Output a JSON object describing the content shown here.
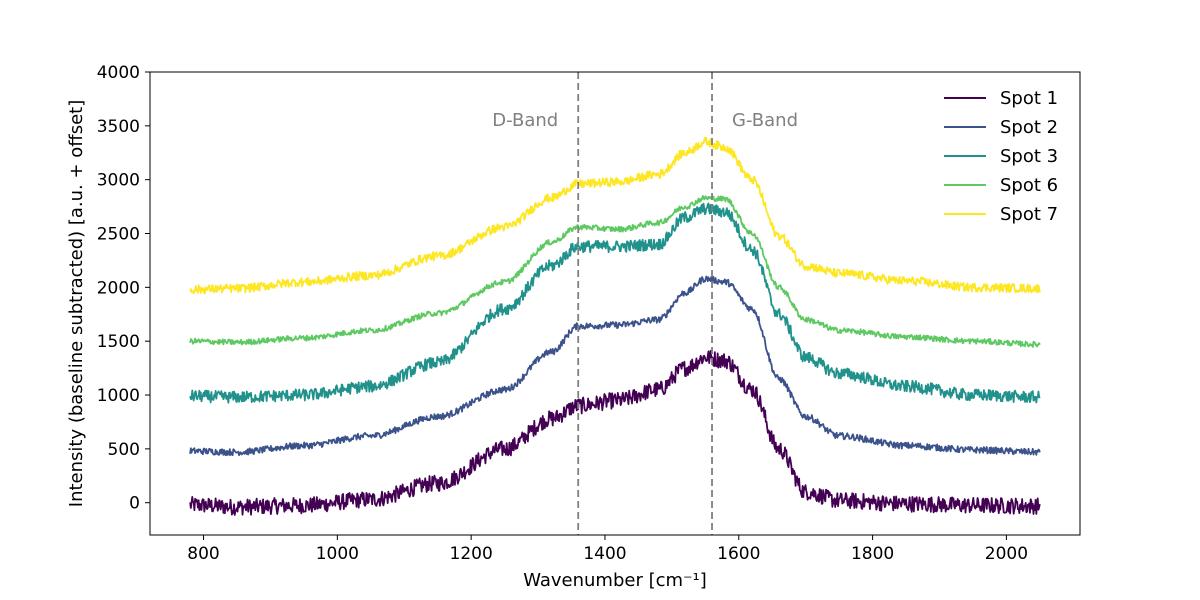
{
  "chart_data": {
    "type": "line",
    "title": "",
    "xlabel": "Wavenumber [cm⁻¹]",
    "ylabel": "Intensity (baseline subtracted) [a.u. + offset]",
    "xlim": [
      720,
      2110
    ],
    "ylim": [
      -300,
      4000
    ],
    "x_ticks": [
      800,
      1000,
      1200,
      1400,
      1600,
      1800,
      2000
    ],
    "y_ticks": [
      0,
      500,
      1000,
      1500,
      2000,
      2500,
      3000,
      3500,
      4000
    ],
    "grid": false,
    "legend_position": "top-right",
    "annotations": [
      {
        "label": "D-Band",
        "x": 1360,
        "color": "#808080",
        "style": "dashed"
      },
      {
        "label": "G-Band",
        "x": 1560,
        "color": "#808080",
        "style": "dashed"
      }
    ],
    "x": [
      780,
      850,
      950,
      1050,
      1150,
      1250,
      1320,
      1360,
      1420,
      1480,
      1520,
      1550,
      1580,
      1620,
      1660,
      1700,
      1750,
      1850,
      1950,
      2050
    ],
    "series": [
      {
        "name": "Spot 1",
        "color": "#440154",
        "offset": 0,
        "noise": 75,
        "values": [
          -20,
          -40,
          -25,
          30,
          180,
          500,
          780,
          900,
          950,
          1050,
          1250,
          1350,
          1320,
          1050,
          500,
          100,
          20,
          -10,
          -25,
          -30
        ]
      },
      {
        "name": "Spot 2",
        "color": "#3b528b",
        "offset": 500,
        "noise": 30,
        "values": [
          480,
          470,
          530,
          620,
          800,
          1050,
          1400,
          1640,
          1650,
          1700,
          1950,
          2080,
          2050,
          1800,
          1150,
          800,
          620,
          530,
          490,
          470
        ]
      },
      {
        "name": "Spot 3",
        "color": "#21918c",
        "offset": 1000,
        "noise": 55,
        "values": [
          990,
          980,
          1000,
          1080,
          1300,
          1800,
          2200,
          2380,
          2380,
          2400,
          2650,
          2730,
          2700,
          2350,
          1750,
          1350,
          1200,
          1080,
          1000,
          980
        ]
      },
      {
        "name": "Spot 6",
        "color": "#5ec962",
        "offset": 1500,
        "noise": 25,
        "values": [
          1500,
          1490,
          1530,
          1600,
          1760,
          2050,
          2420,
          2560,
          2540,
          2600,
          2750,
          2830,
          2820,
          2500,
          2000,
          1700,
          1600,
          1540,
          1500,
          1470
        ]
      },
      {
        "name": "Spot 7",
        "color": "#fde725",
        "offset": 2000,
        "noise": 40,
        "values": [
          1980,
          1990,
          2050,
          2110,
          2290,
          2560,
          2830,
          2960,
          2980,
          3050,
          3250,
          3350,
          3300,
          3000,
          2480,
          2200,
          2130,
          2060,
          2000,
          1990
        ]
      }
    ]
  }
}
